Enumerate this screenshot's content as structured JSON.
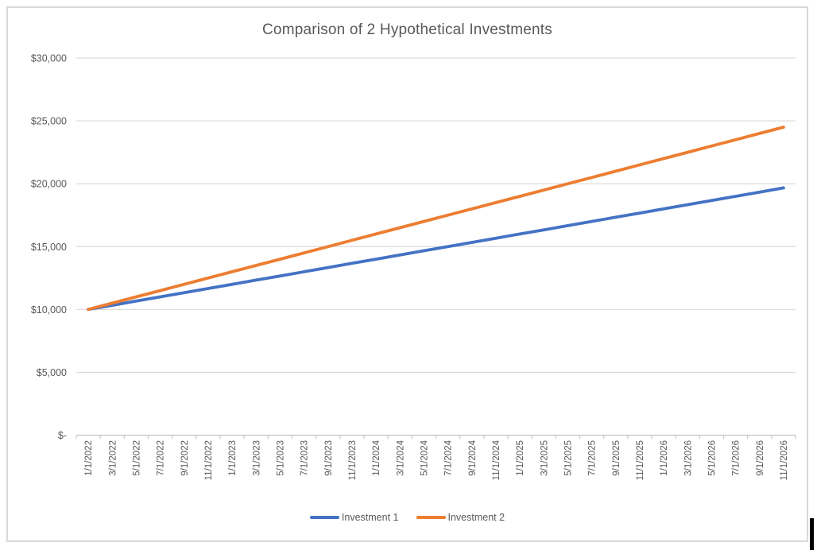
{
  "chart_data": {
    "type": "line",
    "title": "Comparison of 2 Hypothetical Investments",
    "xlabel": "",
    "ylabel": "",
    "categories": [
      "1/1/2022",
      "3/1/2022",
      "5/1/2022",
      "7/1/2022",
      "9/1/2022",
      "11/1/2022",
      "1/1/2023",
      "3/1/2023",
      "5/1/2023",
      "7/1/2023",
      "9/1/2023",
      "11/1/2023",
      "1/1/2024",
      "3/1/2024",
      "5/1/2024",
      "7/1/2024",
      "9/1/2024",
      "11/1/2024",
      "1/1/2025",
      "3/1/2025",
      "5/1/2025",
      "7/1/2025",
      "9/1/2025",
      "11/1/2025",
      "1/1/2026",
      "3/1/2026",
      "5/1/2026",
      "7/1/2026",
      "9/1/2026",
      "11/1/2026"
    ],
    "series": [
      {
        "name": "Investment 1",
        "color": "#4472C4",
        "values": [
          10000,
          10333,
          10667,
          11000,
          11333,
          11667,
          12000,
          12333,
          12667,
          13000,
          13333,
          13667,
          14000,
          14333,
          14667,
          15000,
          15333,
          15667,
          16000,
          16333,
          16667,
          17000,
          17333,
          17667,
          18000,
          18333,
          18667,
          19000,
          19333,
          19667
        ]
      },
      {
        "name": "Investment 2",
        "color": "#ED7D31",
        "values": [
          10000,
          10500,
          11000,
          11500,
          12000,
          12500,
          13000,
          13500,
          14000,
          14500,
          15000,
          15500,
          16000,
          16500,
          17000,
          17500,
          18000,
          18500,
          19000,
          19500,
          20000,
          20500,
          21000,
          21500,
          22000,
          22500,
          23000,
          23500,
          24000,
          24500
        ]
      }
    ],
    "ylim": [
      0,
      30000
    ],
    "y_tick_interval": 5000,
    "y_tick_labels": [
      "$-",
      "$5,000",
      "$10,000",
      "$15,000",
      "$20,000",
      "$25,000",
      "$30,000"
    ],
    "grid": true,
    "legend_position": "bottom",
    "colors": {
      "title_text": "#595959",
      "tick_text": "#595959",
      "gridline": "#d9d9d9",
      "axis_line": "#c6c6c6",
      "frame_border": "#d9d9d9",
      "background": "#ffffff",
      "marker_black": "#000000"
    }
  }
}
